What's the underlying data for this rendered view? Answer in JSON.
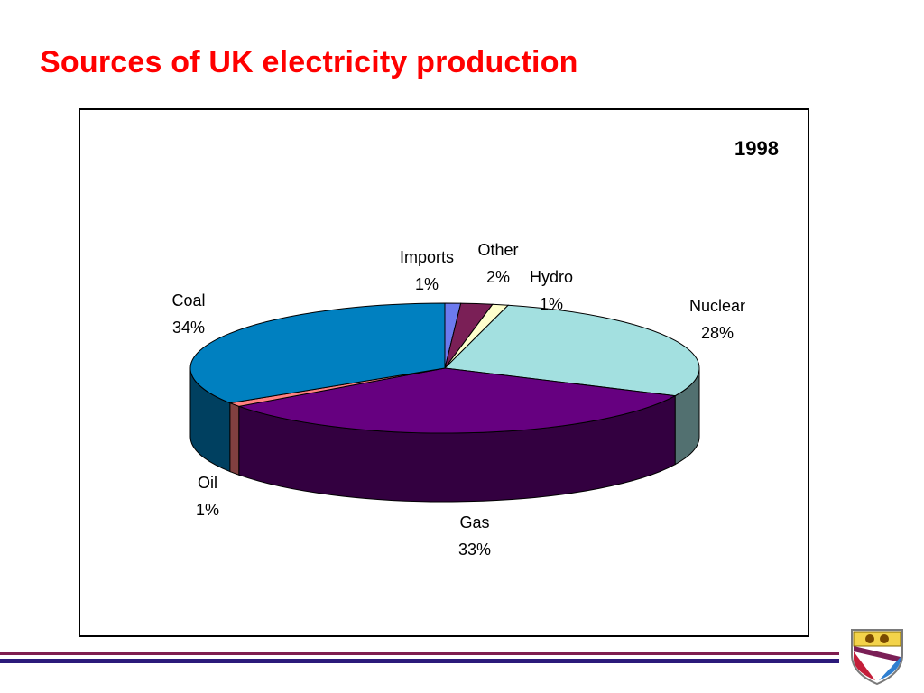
{
  "title": "Sources of UK electricity production",
  "colors": {
    "title": "#ff0000",
    "footer_top": "#7f1d4f",
    "footer_bottom": "#2b1a7a"
  },
  "chart_data": {
    "type": "pie",
    "style": "3d",
    "title": "1998",
    "slices": [
      {
        "label": "Imports",
        "value": 1,
        "pct_label": "1%",
        "color": "#6c7aee"
      },
      {
        "label": "Other",
        "value": 2,
        "pct_label": "2%",
        "color": "#7a1f56"
      },
      {
        "label": "Hydro",
        "value": 1,
        "pct_label": "1%",
        "color": "#ffffcc"
      },
      {
        "label": "Nuclear",
        "value": 28,
        "pct_label": "28%",
        "color": "#a3e0e0"
      },
      {
        "label": "Gas",
        "value": 33,
        "pct_label": "33%",
        "color": "#660080"
      },
      {
        "label": "Oil",
        "value": 1,
        "pct_label": "1%",
        "color": "#ff8080"
      },
      {
        "label": "Coal",
        "value": 34,
        "pct_label": "34%",
        "color": "#0080c0"
      }
    ]
  },
  "logo": {
    "name": "university-crest-logo"
  }
}
